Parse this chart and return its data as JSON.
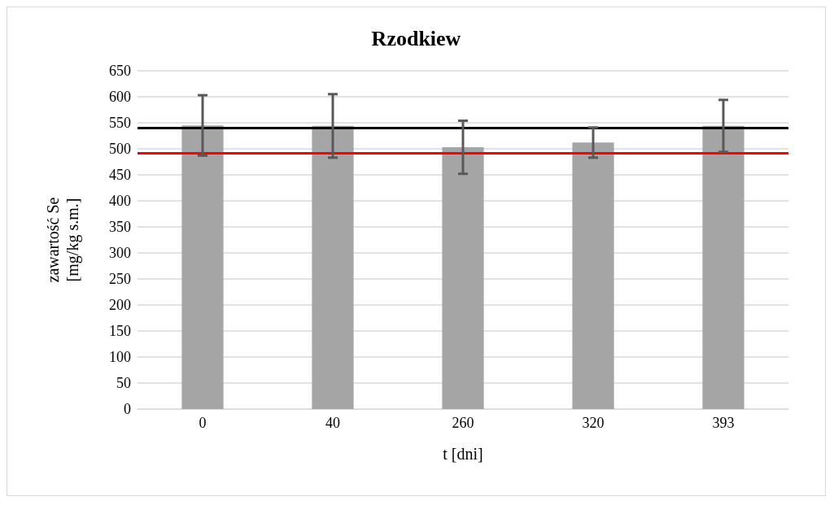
{
  "chart_data": {
    "type": "bar",
    "title": "Rzodkiew",
    "xlabel": "t [dni]",
    "ylabel": "zawartość Se\n[mg/kg s.m.]",
    "categories": [
      "0",
      "40",
      "260",
      "320",
      "393"
    ],
    "values": [
      545,
      544,
      503,
      512,
      544
    ],
    "errors": [
      58,
      61,
      51,
      29,
      50
    ],
    "color": "#a5a5a5",
    "ylim": [
      0,
      650
    ],
    "yticks": [
      0,
      50,
      100,
      150,
      200,
      250,
      300,
      350,
      400,
      450,
      500,
      550,
      600,
      650
    ],
    "grid": "y",
    "ref_lines": [
      {
        "axis": "y",
        "value": 540,
        "color": "#000000"
      },
      {
        "axis": "y",
        "value": 492,
        "color": "#ff0000"
      }
    ]
  }
}
